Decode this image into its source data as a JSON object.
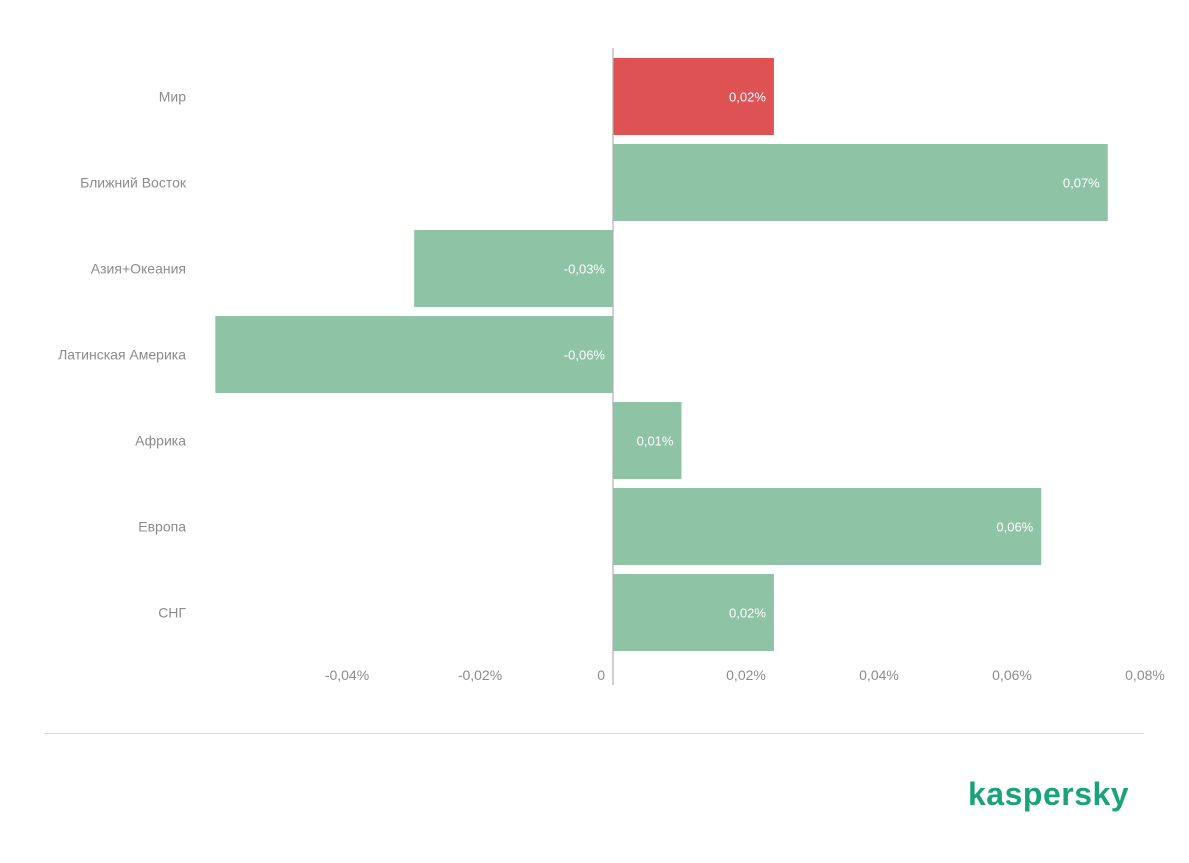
{
  "chart_data": {
    "type": "bar",
    "orientation": "horizontal",
    "categories": [
      "Мир",
      "Ближний Восток",
      "Азия+Океания",
      "Латинская Америка",
      "Африка",
      "Европа",
      "СНГ"
    ],
    "values": [
      0.02,
      0.07,
      -0.03,
      -0.06,
      0.01,
      0.06,
      0.02
    ],
    "bar_values": [
      0.0242,
      0.0744,
      -0.0299,
      -0.0598,
      0.0103,
      0.0644,
      0.0242
    ],
    "data_labels": [
      "0,02%",
      "0,07%",
      "-0,03%",
      "-0,06%",
      "0,01%",
      "0,06%",
      "0,02%"
    ],
    "highlight_index": 0,
    "colors": {
      "default": "#8fc3a6",
      "highlight": "#df5253"
    },
    "xlim": [
      -0.06,
      0.08
    ],
    "xticks": [
      -0.04,
      -0.02,
      0,
      0.02,
      0.04,
      0.06,
      0.08
    ],
    "xtick_labels": [
      "-0,04%",
      "-0,02%",
      "0",
      "0,02%",
      "0,04%",
      "0,06%",
      "0,08%"
    ],
    "title": "",
    "xlabel": "",
    "ylabel": "",
    "grid": false,
    "legend": "none"
  },
  "brand": {
    "name": "kaspersky",
    "color": "#1aa37a"
  }
}
